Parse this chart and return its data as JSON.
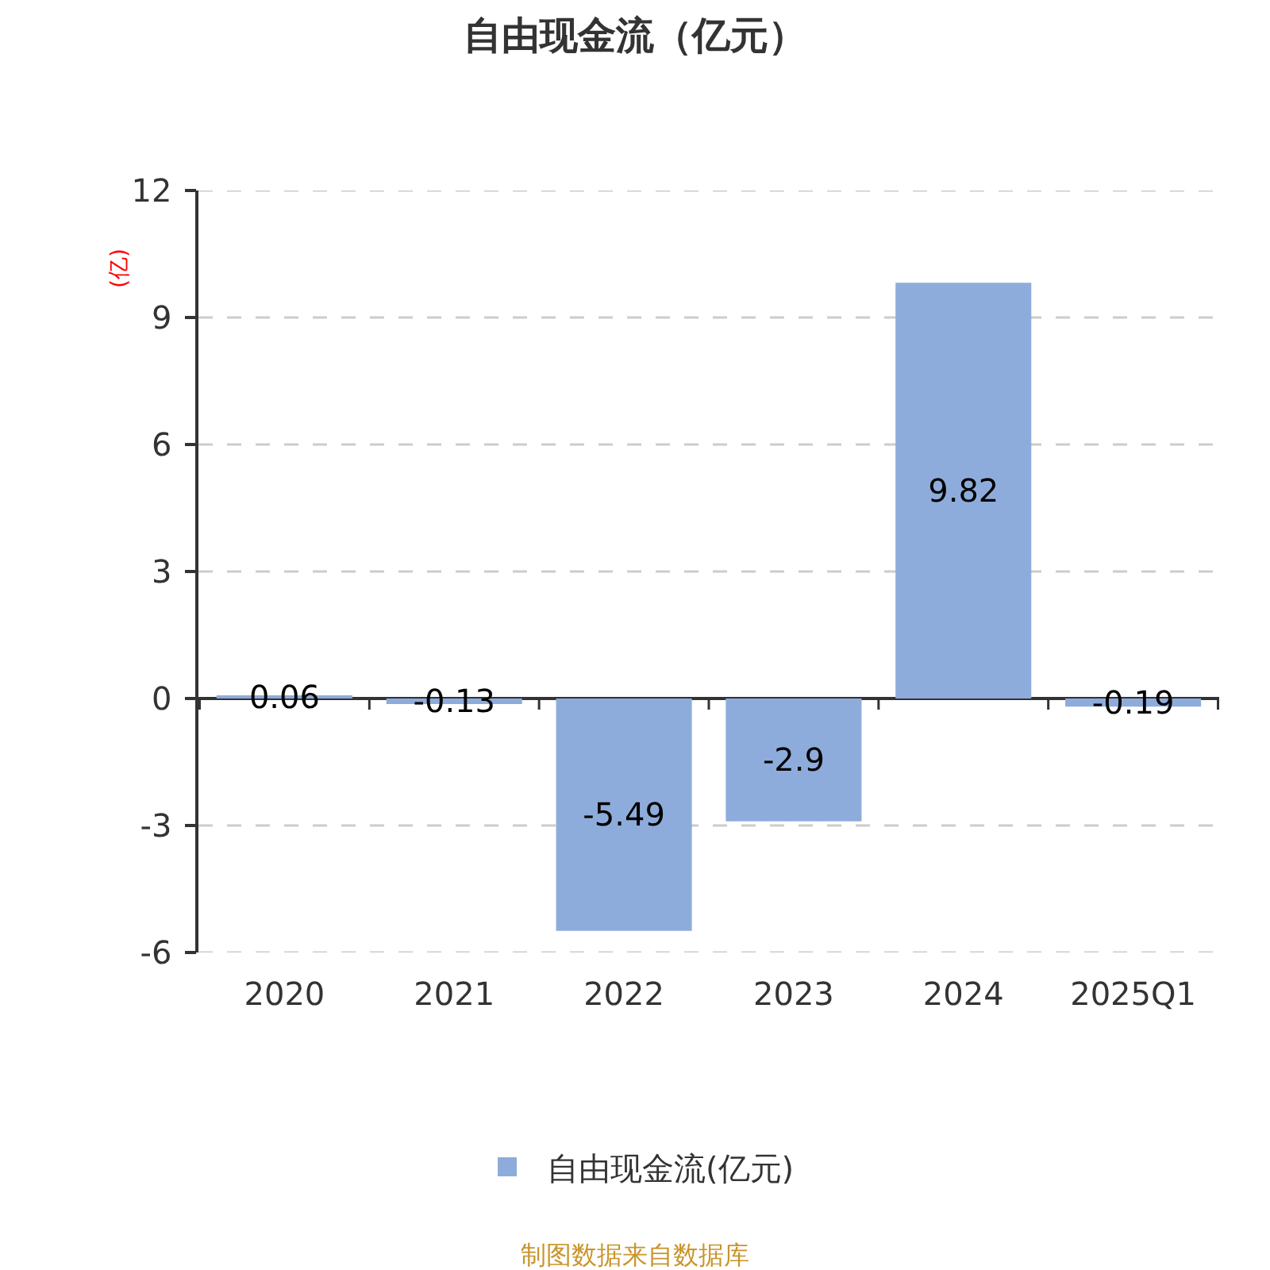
{
  "chart_data": {
    "type": "bar",
    "title": "自由现金流（亿元）",
    "ylabel": "(亿)",
    "categories": [
      "2020",
      "2021",
      "2022",
      "2023",
      "2024",
      "2025Q1"
    ],
    "series": [
      {
        "name": "自由现金流(亿元)",
        "color": "#8eacdb",
        "values": [
          0.06,
          -0.13,
          -5.49,
          -2.9,
          9.82,
          -0.19
        ]
      }
    ],
    "ylim": [
      -6,
      12
    ],
    "yticks": [
      -6,
      -3,
      0,
      3,
      6,
      9,
      12
    ],
    "grid": "y",
    "legend": "bottom",
    "data_labels": true,
    "annotations": [
      "制图数据来自数据库"
    ]
  }
}
